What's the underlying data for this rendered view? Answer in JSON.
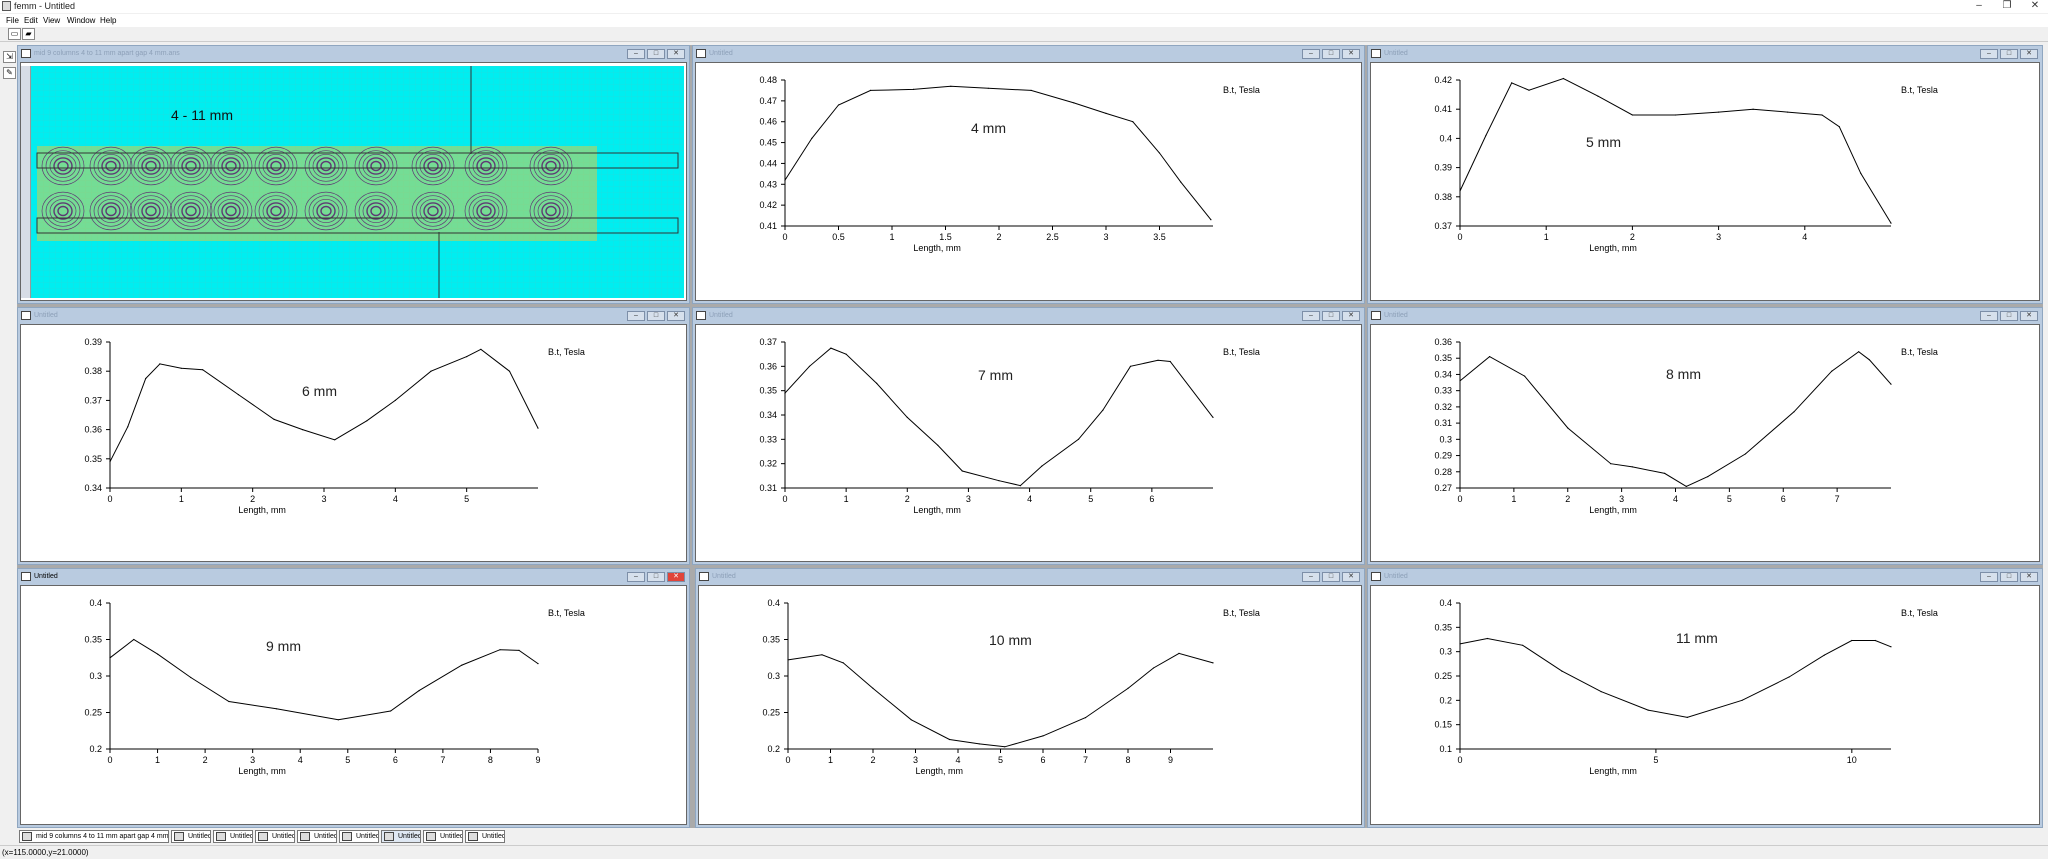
{
  "window": {
    "title": "femm - Untitled",
    "controls": {
      "minimize": "–",
      "restore": "❐",
      "close": "✕"
    }
  },
  "menu": [
    "File",
    "Edit",
    "View",
    "Window",
    "Help"
  ],
  "toolbar": {
    "icons": [
      "new-document-icon",
      "open-folder-icon"
    ]
  },
  "left_tools": {
    "icons": [
      "zoom-tool-icon",
      "edit-tool-icon"
    ]
  },
  "panel_buttons": {
    "minimize": "–",
    "maximize": "□",
    "close": "✕"
  },
  "field_panel": {
    "title": "mid 9 columns 4 to 11 mm apart gap 4 mm.ans",
    "label": "4 - 11 mm",
    "colors": {
      "background": "#00eef0",
      "magnet_fill": "#d4d04a",
      "contour": "#5a1e6e"
    }
  },
  "plots": [
    {
      "title": "Untitled",
      "active": false,
      "label": "4 mm",
      "unit": "B.t, Tesla",
      "xlabel": "Length, mm",
      "chart_data": {
        "type": "line",
        "xlim": [
          0,
          4
        ],
        "ylim": [
          0.41,
          0.48
        ],
        "xticks": [
          "0",
          "0.5",
          "1",
          "1.5",
          "2",
          "2.5",
          "3",
          "3.5"
        ],
        "xtick_vals": [
          0,
          0.5,
          1,
          1.5,
          2,
          2.5,
          3,
          3.5
        ],
        "yticks": [
          "0.48",
          "0.47",
          "0.46",
          "0.45",
          "0.44",
          "0.43",
          "0.42",
          "0.41"
        ],
        "ytick_vals": [
          0.48,
          0.47,
          0.46,
          0.45,
          0.44,
          0.43,
          0.42,
          0.41
        ],
        "x": [
          0,
          0.25,
          0.5,
          0.8,
          1.2,
          1.55,
          1.9,
          2.3,
          2.7,
          3.0,
          3.25,
          3.5,
          3.7,
          3.98
        ],
        "y": [
          0.432,
          0.452,
          0.468,
          0.475,
          0.4755,
          0.477,
          0.476,
          0.475,
          0.469,
          0.464,
          0.46,
          0.445,
          0.431,
          0.413
        ]
      }
    },
    {
      "title": "Untitled",
      "active": false,
      "label": "5 mm",
      "unit": "B.t, Tesla",
      "xlabel": "Length, mm",
      "chart_data": {
        "type": "line",
        "xlim": [
          0,
          5
        ],
        "ylim": [
          0.37,
          0.42
        ],
        "xticks": [
          "0",
          "1",
          "2",
          "3",
          "4"
        ],
        "xtick_vals": [
          0,
          1,
          2,
          3,
          4
        ],
        "yticks": [
          "0.42",
          "0.41",
          "0.4",
          "0.39",
          "0.38",
          "0.37"
        ],
        "ytick_vals": [
          0.42,
          0.41,
          0.4,
          0.39,
          0.38,
          0.37
        ],
        "x": [
          0,
          0.3,
          0.6,
          0.8,
          1.2,
          1.6,
          2.0,
          2.5,
          3.0,
          3.4,
          3.8,
          4.2,
          4.4,
          4.65,
          5.0
        ],
        "y": [
          0.382,
          0.401,
          0.419,
          0.4165,
          0.4205,
          0.4145,
          0.408,
          0.408,
          0.409,
          0.41,
          0.409,
          0.408,
          0.404,
          0.388,
          0.371
        ]
      }
    },
    {
      "title": "Untitled",
      "active": false,
      "label": "6 mm",
      "unit": "B.t, Tesla",
      "xlabel": "Length, mm",
      "chart_data": {
        "type": "line",
        "xlim": [
          0,
          6
        ],
        "ylim": [
          0.34,
          0.39
        ],
        "xticks": [
          "0",
          "1",
          "2",
          "3",
          "4",
          "5"
        ],
        "xtick_vals": [
          0,
          1,
          2,
          3,
          4,
          5
        ],
        "yticks": [
          "0.39",
          "0.38",
          "0.37",
          "0.36",
          "0.35",
          "0.34"
        ],
        "ytick_vals": [
          0.39,
          0.38,
          0.37,
          0.36,
          0.35,
          0.34
        ],
        "x": [
          0,
          0.25,
          0.5,
          0.7,
          1.0,
          1.3,
          1.8,
          2.3,
          2.7,
          3.15,
          3.6,
          4.0,
          4.5,
          5.0,
          5.2,
          5.6,
          6.0
        ],
        "y": [
          0.349,
          0.361,
          0.3775,
          0.3825,
          0.381,
          0.3805,
          0.372,
          0.3635,
          0.36,
          0.3565,
          0.363,
          0.37,
          0.38,
          0.385,
          0.3875,
          0.38,
          0.3605
        ]
      }
    },
    {
      "title": "Untitled",
      "active": false,
      "label": "7 mm",
      "unit": "B.t, Tesla",
      "xlabel": "Length, mm",
      "chart_data": {
        "type": "line",
        "xlim": [
          0,
          7
        ],
        "ylim": [
          0.31,
          0.37
        ],
        "xticks": [
          "0",
          "1",
          "2",
          "3",
          "4",
          "5",
          "6"
        ],
        "xtick_vals": [
          0,
          1,
          2,
          3,
          4,
          5,
          6
        ],
        "yticks": [
          "0.37",
          "0.36",
          "0.35",
          "0.34",
          "0.33",
          "0.32",
          "0.31"
        ],
        "ytick_vals": [
          0.37,
          0.36,
          0.35,
          0.34,
          0.33,
          0.32,
          0.31
        ],
        "x": [
          0,
          0.4,
          0.75,
          1.0,
          1.5,
          2.0,
          2.5,
          2.9,
          3.5,
          3.85,
          4.2,
          4.8,
          5.2,
          5.65,
          6.1,
          6.3,
          7.0
        ],
        "y": [
          0.349,
          0.36,
          0.3675,
          0.365,
          0.353,
          0.339,
          0.3275,
          0.317,
          0.313,
          0.311,
          0.319,
          0.33,
          0.342,
          0.36,
          0.3625,
          0.362,
          0.339
        ]
      }
    },
    {
      "title": "Untitled",
      "active": false,
      "label": "8 mm",
      "unit": "B.t, Tesla",
      "xlabel": "Length, mm",
      "chart_data": {
        "type": "line",
        "xlim": [
          0,
          8
        ],
        "ylim": [
          0.27,
          0.36
        ],
        "xticks": [
          "0",
          "1",
          "2",
          "3",
          "4",
          "5",
          "6",
          "7"
        ],
        "xtick_vals": [
          0,
          1,
          2,
          3,
          4,
          5,
          6,
          7
        ],
        "yticks": [
          "0.36",
          "0.35",
          "0.34",
          "0.33",
          "0.32",
          "0.31",
          "0.3",
          "0.29",
          "0.28",
          "0.27"
        ],
        "ytick_vals": [
          0.36,
          0.35,
          0.34,
          0.33,
          0.32,
          0.31,
          0.3,
          0.29,
          0.28,
          0.27
        ],
        "x": [
          0,
          0.55,
          1.2,
          2.0,
          2.8,
          3.2,
          3.8,
          4.2,
          4.6,
          5.3,
          6.2,
          6.9,
          7.4,
          7.6,
          8.0
        ],
        "y": [
          0.336,
          0.351,
          0.339,
          0.307,
          0.285,
          0.283,
          0.279,
          0.271,
          0.277,
          0.291,
          0.317,
          0.342,
          0.354,
          0.349,
          0.334
        ]
      }
    },
    {
      "title": "Untitled",
      "active": true,
      "label": "9 mm",
      "unit": "B.t, Tesla",
      "xlabel": "Length, mm",
      "chart_data": {
        "type": "line",
        "xlim": [
          0,
          9
        ],
        "ylim": [
          0.2,
          0.4
        ],
        "xticks": [
          "0",
          "1",
          "2",
          "3",
          "4",
          "5",
          "6",
          "7",
          "8",
          "9"
        ],
        "xtick_vals": [
          0,
          1,
          2,
          3,
          4,
          5,
          6,
          7,
          8,
          9
        ],
        "yticks": [
          "0.4",
          "0.35",
          "0.3",
          "0.25",
          "0.2"
        ],
        "ytick_vals": [
          0.4,
          0.35,
          0.3,
          0.25,
          0.2
        ],
        "x": [
          0,
          0.5,
          1.0,
          1.7,
          2.5,
          3.5,
          4.8,
          5.9,
          6.5,
          7.4,
          8.2,
          8.6,
          9.0
        ],
        "y": [
          0.325,
          0.35,
          0.33,
          0.298,
          0.265,
          0.255,
          0.24,
          0.252,
          0.28,
          0.315,
          0.336,
          0.335,
          0.317
        ]
      }
    },
    {
      "title": "Untitled",
      "active": false,
      "label": "10 mm",
      "unit": "B.t, Tesla",
      "xlabel": "Length, mm",
      "chart_data": {
        "type": "line",
        "xlim": [
          0,
          10
        ],
        "ylim": [
          0.2,
          0.4
        ],
        "xticks": [
          "0",
          "1",
          "2",
          "3",
          "4",
          "5",
          "6",
          "7",
          "8",
          "9"
        ],
        "xtick_vals": [
          0,
          1,
          2,
          3,
          4,
          5,
          6,
          7,
          8,
          9
        ],
        "yticks": [
          "0.4",
          "0.35",
          "0.3",
          "0.25",
          "0.2"
        ],
        "ytick_vals": [
          0.4,
          0.35,
          0.3,
          0.25,
          0.2
        ],
        "x": [
          0,
          0.8,
          1.3,
          2.0,
          2.9,
          3.8,
          4.5,
          5.1,
          6.0,
          7.0,
          8.0,
          8.6,
          9.2,
          10.0
        ],
        "y": [
          0.322,
          0.329,
          0.318,
          0.283,
          0.24,
          0.213,
          0.207,
          0.203,
          0.218,
          0.243,
          0.283,
          0.311,
          0.331,
          0.318
        ]
      }
    },
    {
      "title": "Untitled",
      "active": false,
      "label": "11 mm",
      "unit": "B.t, Tesla",
      "xlabel": "Length, mm",
      "chart_data": {
        "type": "line",
        "xlim": [
          0,
          11
        ],
        "ylim": [
          0.1,
          0.4
        ],
        "xticks": [
          "0",
          "5",
          "10"
        ],
        "xtick_vals": [
          0,
          5,
          10
        ],
        "yticks": [
          "0.4",
          "0.35",
          "0.3",
          "0.25",
          "0.2",
          "0.15",
          "0.1"
        ],
        "ytick_vals": [
          0.4,
          0.35,
          0.3,
          0.25,
          0.2,
          0.15,
          0.1
        ],
        "x": [
          0,
          0.7,
          1.6,
          2.6,
          3.6,
          4.8,
          5.8,
          7.2,
          8.4,
          9.3,
          10.0,
          10.6,
          11.0
        ],
        "y": [
          0.316,
          0.327,
          0.313,
          0.26,
          0.218,
          0.18,
          0.165,
          0.2,
          0.248,
          0.293,
          0.323,
          0.323,
          0.31
        ]
      }
    }
  ],
  "taskbar": [
    {
      "label": "mid 9 columns 4 to 11 mm apart gap 4 mm.ans",
      "active": false
    },
    {
      "label": "Untitled",
      "active": false
    },
    {
      "label": "Untitled",
      "active": false
    },
    {
      "label": "Untitled",
      "active": false
    },
    {
      "label": "Untitled",
      "active": false
    },
    {
      "label": "Untitled",
      "active": false
    },
    {
      "label": "Untitled",
      "active": true
    },
    {
      "label": "Untitled",
      "active": false
    },
    {
      "label": "Untitled",
      "active": false
    }
  ],
  "status": "(x=115.0000,y=21.0000)"
}
